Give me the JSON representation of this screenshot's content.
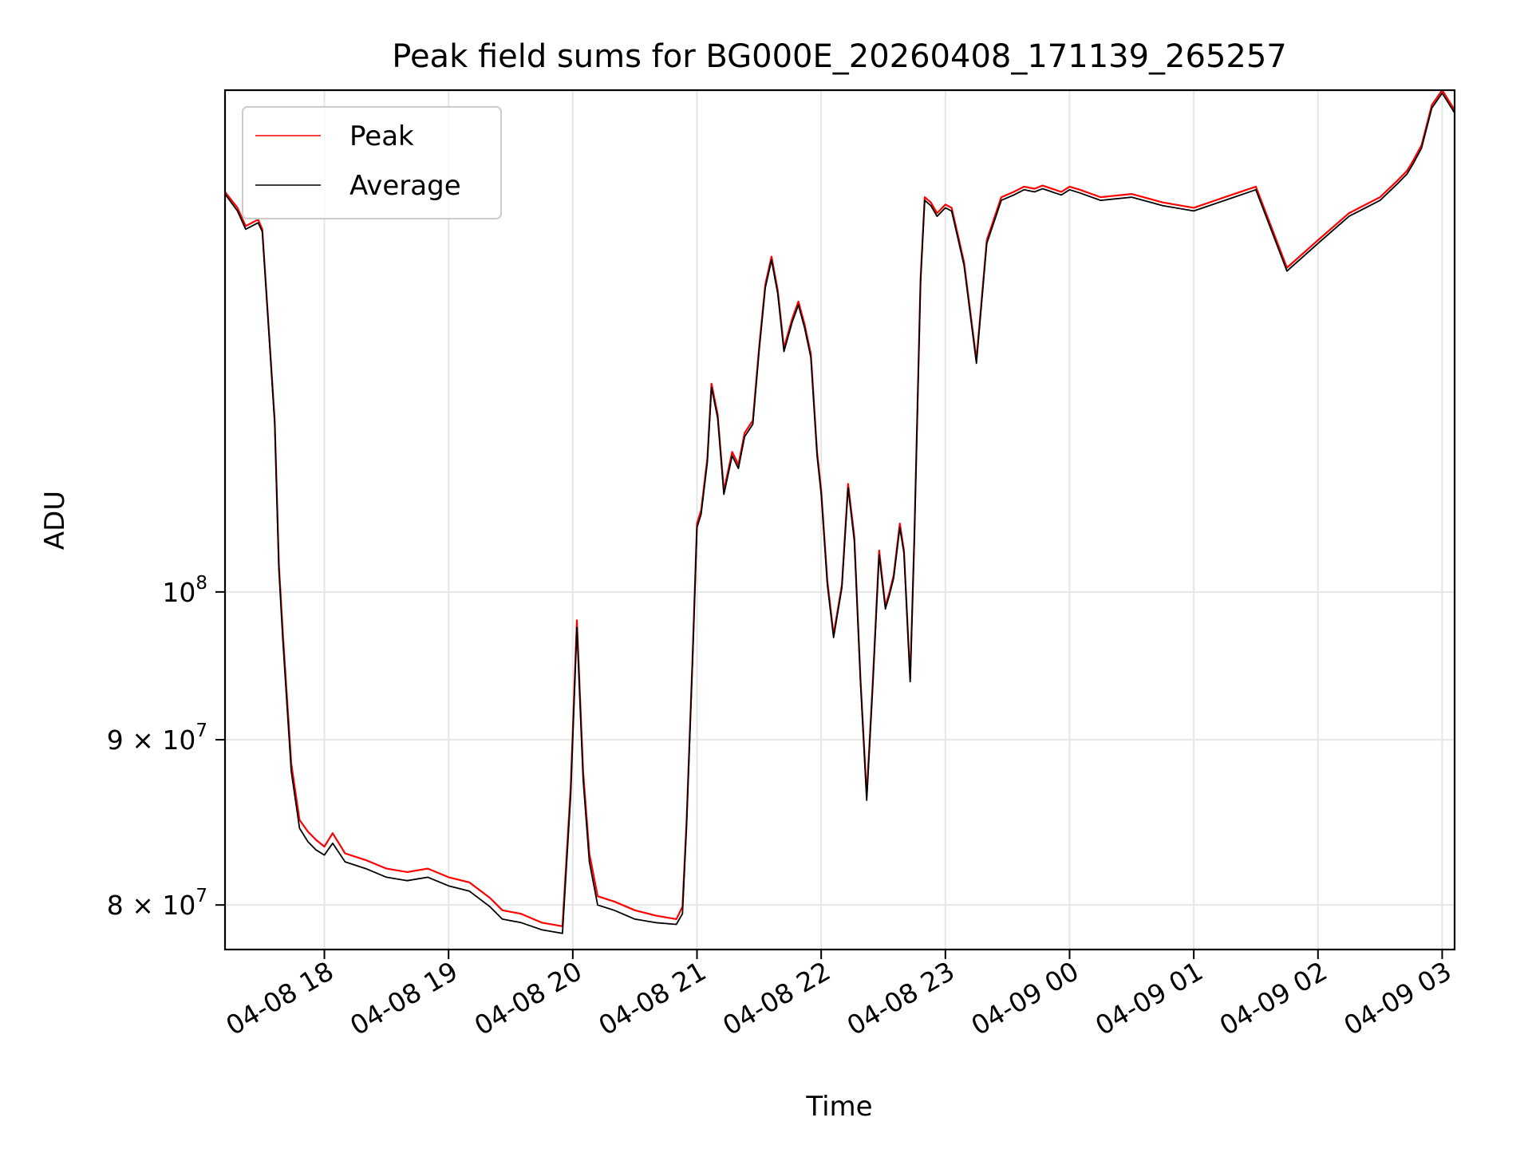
{
  "chart_data": {
    "type": "line",
    "title": "Peak field sums for BG000E_20260408_171139_265257",
    "xlabel": "Time",
    "ylabel": "ADU",
    "yscale": "log",
    "grid": true,
    "legend_position": "top-left",
    "x_ticks": [
      {
        "label": "04-08 18",
        "t": "2026-04-08 18:00"
      },
      {
        "label": "04-08 19",
        "t": "2026-04-08 19:00"
      },
      {
        "label": "04-08 20",
        "t": "2026-04-08 20:00"
      },
      {
        "label": "04-08 21",
        "t": "2026-04-08 21:00"
      },
      {
        "label": "04-08 22",
        "t": "2026-04-08 22:00"
      },
      {
        "label": "04-08 23",
        "t": "2026-04-08 23:00"
      },
      {
        "label": "04-09 00",
        "t": "2026-04-09 00:00"
      },
      {
        "label": "04-09 01",
        "t": "2026-04-09 01:00"
      },
      {
        "label": "04-09 02",
        "t": "2026-04-09 02:00"
      },
      {
        "label": "04-09 03",
        "t": "2026-04-09 03:00"
      }
    ],
    "y_ticks": [
      {
        "value": 80000000,
        "mantissa": "8",
        "base": "10",
        "exp": "7"
      },
      {
        "value": 90000000,
        "mantissa": "9",
        "base": "10",
        "exp": "7"
      },
      {
        "value": 100000000,
        "mantissa": "",
        "base": "10",
        "exp": "8"
      }
    ],
    "xlim": [
      "2026-04-08 17:12",
      "2026-04-09 03:06"
    ],
    "ylim": [
      77500000,
      143000000
    ],
    "series": [
      {
        "name": "Peak",
        "color": "#ff0000",
        "x": [
          "2026-04-08 17:12",
          "2026-04-08 17:18",
          "2026-04-08 17:22",
          "2026-04-08 17:28",
          "2026-04-08 17:30",
          "2026-04-08 17:33",
          "2026-04-08 17:36",
          "2026-04-08 17:38",
          "2026-04-08 17:40",
          "2026-04-08 17:44",
          "2026-04-08 17:48",
          "2026-04-08 17:52",
          "2026-04-08 17:56",
          "2026-04-08 18:00",
          "2026-04-08 18:04",
          "2026-04-08 18:10",
          "2026-04-08 18:20",
          "2026-04-08 18:30",
          "2026-04-08 18:40",
          "2026-04-08 18:50",
          "2026-04-08 19:00",
          "2026-04-08 19:10",
          "2026-04-08 19:20",
          "2026-04-08 19:26",
          "2026-04-08 19:35",
          "2026-04-08 19:45",
          "2026-04-08 19:55",
          "2026-04-08 19:59",
          "2026-04-08 20:02",
          "2026-04-08 20:05",
          "2026-04-08 20:08",
          "2026-04-08 20:12",
          "2026-04-08 20:20",
          "2026-04-08 20:30",
          "2026-04-08 20:40",
          "2026-04-08 20:50",
          "2026-04-08 20:53",
          "2026-04-08 20:55",
          "2026-04-08 20:58",
          "2026-04-08 21:00",
          "2026-04-08 21:02",
          "2026-04-08 21:05",
          "2026-04-08 21:07",
          "2026-04-08 21:10",
          "2026-04-08 21:13",
          "2026-04-08 21:17",
          "2026-04-08 21:20",
          "2026-04-08 21:23",
          "2026-04-08 21:27",
          "2026-04-08 21:30",
          "2026-04-08 21:33",
          "2026-04-08 21:36",
          "2026-04-08 21:39",
          "2026-04-08 21:42",
          "2026-04-08 21:46",
          "2026-04-08 21:49",
          "2026-04-08 21:52",
          "2026-04-08 21:55",
          "2026-04-08 21:58",
          "2026-04-08 22:00",
          "2026-04-08 22:03",
          "2026-04-08 22:06",
          "2026-04-08 22:10",
          "2026-04-08 22:13",
          "2026-04-08 22:16",
          "2026-04-08 22:19",
          "2026-04-08 22:22",
          "2026-04-08 22:25",
          "2026-04-08 22:28",
          "2026-04-08 22:31",
          "2026-04-08 22:33",
          "2026-04-08 22:35",
          "2026-04-08 22:38",
          "2026-04-08 22:40",
          "2026-04-08 22:43",
          "2026-04-08 22:45",
          "2026-04-08 22:48",
          "2026-04-08 22:50",
          "2026-04-08 22:53",
          "2026-04-08 22:56",
          "2026-04-08 23:00",
          "2026-04-08 23:03",
          "2026-04-08 23:06",
          "2026-04-08 23:09",
          "2026-04-08 23:15",
          "2026-04-08 23:20",
          "2026-04-08 23:27",
          "2026-04-08 23:33",
          "2026-04-08 23:38",
          "2026-04-08 23:43",
          "2026-04-08 23:47",
          "2026-04-08 23:50",
          "2026-04-08 23:53",
          "2026-04-08 23:56",
          "2026-04-09 00:00",
          "2026-04-09 00:05",
          "2026-04-09 00:15",
          "2026-04-09 00:30",
          "2026-04-09 00:45",
          "2026-04-09 01:00",
          "2026-04-09 01:15",
          "2026-04-09 01:30",
          "2026-04-09 01:45",
          "2026-04-09 02:00",
          "2026-04-09 02:15",
          "2026-04-09 02:30",
          "2026-04-09 02:38",
          "2026-04-09 02:43",
          "2026-04-09 02:46",
          "2026-04-09 02:50",
          "2026-04-09 02:55",
          "2026-04-09 03:00",
          "2026-04-09 03:06"
        ],
        "y": [
          133000000,
          131500000,
          129800000,
          130400000,
          129500000,
          121000000,
          113000000,
          102000000,
          97000000,
          88500000,
          85000000,
          84300000,
          83800000,
          83400000,
          84200000,
          83000000,
          82600000,
          82100000,
          81900000,
          82100000,
          81600000,
          81300000,
          80400000,
          79700000,
          79500000,
          79000000,
          78800000,
          87000000,
          98000000,
          88000000,
          83000000,
          80500000,
          80200000,
          79700000,
          79400000,
          79200000,
          79900000,
          85000000,
          96000000,
          105000000,
          106000000,
          110000000,
          116000000,
          113500000,
          107500000,
          110500000,
          109500000,
          112000000,
          113000000,
          119000000,
          124500000,
          127000000,
          124000000,
          119000000,
          121500000,
          123000000,
          121000000,
          118500000,
          110500000,
          107500000,
          100800000,
          97000000,
          100500000,
          108000000,
          104000000,
          94000000,
          86500000,
          94000000,
          103000000,
          99000000,
          100000000,
          101200000,
          105000000,
          103000000,
          94000000,
          104000000,
          125000000,
          132500000,
          132000000,
          131000000,
          131800000,
          131500000,
          129000000,
          126500000,
          118000000,
          128500000,
          132500000,
          133000000,
          133500000,
          133300000,
          133600000,
          133400000,
          133200000,
          133000000,
          133500000,
          133200000,
          132500000,
          132800000,
          132000000,
          131500000,
          132500000,
          133500000,
          126000000,
          128500000,
          131000000,
          132500000,
          134000000,
          135000000,
          136000000,
          137500000,
          141500000,
          143000000,
          141000000
        ]
      },
      {
        "name": "Average",
        "color": "#000000",
        "x": [
          "2026-04-08 17:12",
          "2026-04-08 17:18",
          "2026-04-08 17:22",
          "2026-04-08 17:28",
          "2026-04-08 17:30",
          "2026-04-08 17:33",
          "2026-04-08 17:36",
          "2026-04-08 17:38",
          "2026-04-08 17:40",
          "2026-04-08 17:44",
          "2026-04-08 17:48",
          "2026-04-08 17:52",
          "2026-04-08 17:56",
          "2026-04-08 18:00",
          "2026-04-08 18:04",
          "2026-04-08 18:10",
          "2026-04-08 18:20",
          "2026-04-08 18:30",
          "2026-04-08 18:40",
          "2026-04-08 18:50",
          "2026-04-08 19:00",
          "2026-04-08 19:10",
          "2026-04-08 19:20",
          "2026-04-08 19:26",
          "2026-04-08 19:35",
          "2026-04-08 19:45",
          "2026-04-08 19:55",
          "2026-04-08 19:59",
          "2026-04-08 20:02",
          "2026-04-08 20:05",
          "2026-04-08 20:08",
          "2026-04-08 20:12",
          "2026-04-08 20:20",
          "2026-04-08 20:30",
          "2026-04-08 20:40",
          "2026-04-08 20:50",
          "2026-04-08 20:53",
          "2026-04-08 20:55",
          "2026-04-08 20:58",
          "2026-04-08 21:00",
          "2026-04-08 21:02",
          "2026-04-08 21:05",
          "2026-04-08 21:07",
          "2026-04-08 21:10",
          "2026-04-08 21:13",
          "2026-04-08 21:17",
          "2026-04-08 21:20",
          "2026-04-08 21:23",
          "2026-04-08 21:27",
          "2026-04-08 21:30",
          "2026-04-08 21:33",
          "2026-04-08 21:36",
          "2026-04-08 21:39",
          "2026-04-08 21:42",
          "2026-04-08 21:46",
          "2026-04-08 21:49",
          "2026-04-08 21:52",
          "2026-04-08 21:55",
          "2026-04-08 21:58",
          "2026-04-08 22:00",
          "2026-04-08 22:03",
          "2026-04-08 22:06",
          "2026-04-08 22:10",
          "2026-04-08 22:13",
          "2026-04-08 22:16",
          "2026-04-08 22:19",
          "2026-04-08 22:22",
          "2026-04-08 22:25",
          "2026-04-08 22:28",
          "2026-04-08 22:31",
          "2026-04-08 22:33",
          "2026-04-08 22:35",
          "2026-04-08 22:38",
          "2026-04-08 22:40",
          "2026-04-08 22:43",
          "2026-04-08 22:45",
          "2026-04-08 22:48",
          "2026-04-08 22:50",
          "2026-04-08 22:53",
          "2026-04-08 22:56",
          "2026-04-08 23:00",
          "2026-04-08 23:03",
          "2026-04-08 23:06",
          "2026-04-08 23:09",
          "2026-04-08 23:15",
          "2026-04-08 23:20",
          "2026-04-08 23:27",
          "2026-04-08 23:33",
          "2026-04-08 23:38",
          "2026-04-08 23:43",
          "2026-04-08 23:47",
          "2026-04-08 23:50",
          "2026-04-08 23:53",
          "2026-04-08 23:56",
          "2026-04-09 00:00",
          "2026-04-09 00:05",
          "2026-04-09 00:15",
          "2026-04-09 00:30",
          "2026-04-09 00:45",
          "2026-04-09 01:00",
          "2026-04-09 01:15",
          "2026-04-09 01:30",
          "2026-04-09 01:45",
          "2026-04-09 02:00",
          "2026-04-09 02:15",
          "2026-04-09 02:30",
          "2026-04-09 02:38",
          "2026-04-09 02:43",
          "2026-04-09 02:46",
          "2026-04-09 02:50",
          "2026-04-09 02:55",
          "2026-04-09 03:00",
          "2026-04-09 03:06"
        ],
        "y": [
          132800000,
          131200000,
          129500000,
          130100000,
          129300000,
          120800000,
          112700000,
          101600000,
          96500000,
          88000000,
          84500000,
          83700000,
          83200000,
          82900000,
          83600000,
          82500000,
          82100000,
          81600000,
          81400000,
          81600000,
          81100000,
          80800000,
          79900000,
          79200000,
          79000000,
          78600000,
          78400000,
          86500000,
          97500000,
          87500000,
          82500000,
          80000000,
          79700000,
          79200000,
          79000000,
          78900000,
          79500000,
          84700000,
          95700000,
          104700000,
          105700000,
          109700000,
          115700000,
          113200000,
          107200000,
          110200000,
          109200000,
          111700000,
          112700000,
          118700000,
          124200000,
          126700000,
          123700000,
          118700000,
          121200000,
          122700000,
          120700000,
          118200000,
          110200000,
          107200000,
          100500000,
          96800000,
          100300000,
          107700000,
          103700000,
          93800000,
          86200000,
          93700000,
          102700000,
          98800000,
          99800000,
          101000000,
          104700000,
          102800000,
          93800000,
          103800000,
          124700000,
          132200000,
          131700000,
          130700000,
          131500000,
          131200000,
          128700000,
          126200000,
          117700000,
          128200000,
          132200000,
          132700000,
          133200000,
          133000000,
          133300000,
          133100000,
          132900000,
          132700000,
          133200000,
          132900000,
          132200000,
          132500000,
          131700000,
          131200000,
          132200000,
          133200000,
          125700000,
          128200000,
          130700000,
          132200000,
          133700000,
          134700000,
          135700000,
          137200000,
          141200000,
          142700000,
          140700000
        ]
      }
    ]
  }
}
